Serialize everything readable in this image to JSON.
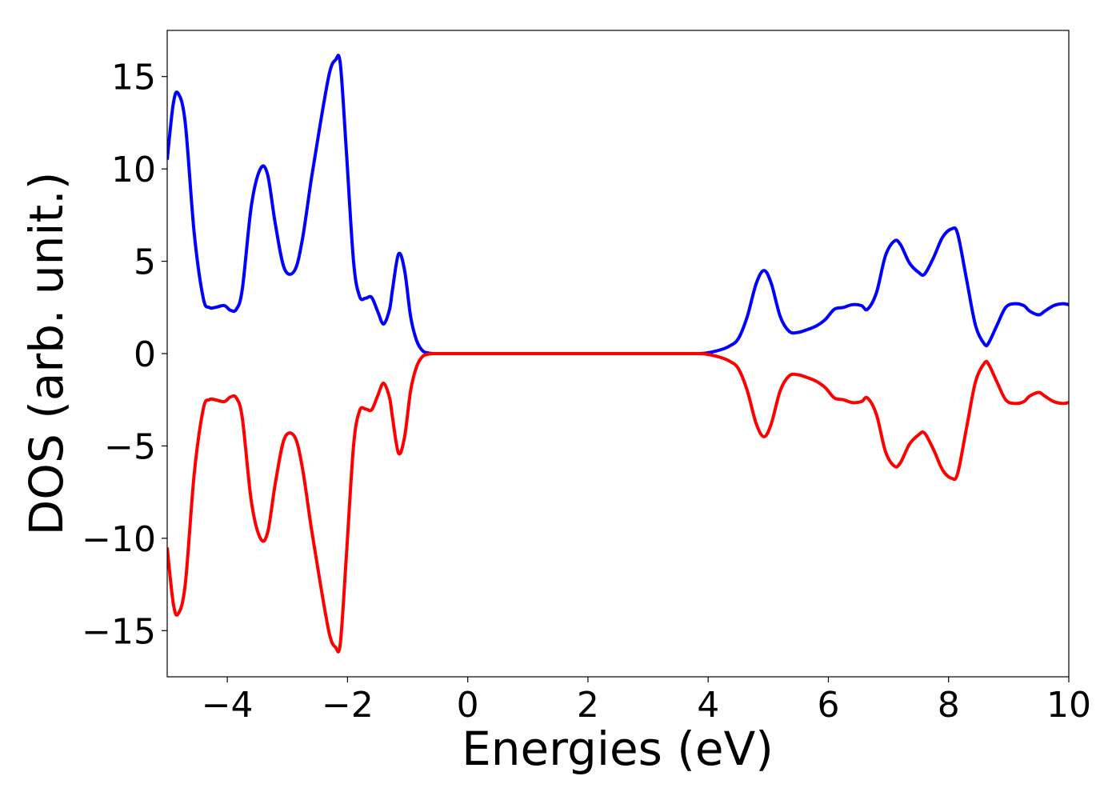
{
  "chart_data": {
    "type": "line",
    "title": "",
    "xlabel": "Energies (eV)",
    "ylabel": "DOS (arb. unit.)",
    "xlim": [
      -5,
      10
    ],
    "ylim": [
      -17.5,
      17.5
    ],
    "grid": false,
    "legend": "none",
    "xticks": [
      -4,
      -2,
      0,
      2,
      4,
      6,
      8,
      10
    ],
    "xtick_labels": [
      "−4",
      "−2",
      "0",
      "2",
      "4",
      "6",
      "8",
      "10"
    ],
    "yticks": [
      -15,
      -10,
      -5,
      0,
      5,
      10,
      15
    ],
    "ytick_labels": [
      "−15",
      "−10",
      "−5",
      "0",
      "5",
      "10",
      "15"
    ],
    "series": [
      {
        "color": "#0000ff",
        "x": [
          -5.0,
          -4.9,
          -4.82,
          -4.7,
          -4.55,
          -4.4,
          -4.3,
          -4.2,
          -4.05,
          -3.95,
          -3.85,
          -3.75,
          -3.6,
          -3.45,
          -3.33,
          -3.2,
          -3.05,
          -2.88,
          -2.75,
          -2.6,
          -2.45,
          -2.3,
          -2.2,
          -2.12,
          -2.02,
          -1.9,
          -1.8,
          -1.7,
          -1.6,
          -1.5,
          -1.4,
          -1.3,
          -1.25,
          -1.15,
          -1.05,
          -0.95,
          -0.85,
          -0.75,
          -0.65,
          -0.55,
          -0.45,
          -0.3,
          0.0,
          1.0,
          2.0,
          3.0,
          3.8,
          4.0,
          4.2,
          4.35,
          4.5,
          4.65,
          4.8,
          4.93,
          5.05,
          5.2,
          5.35,
          5.5,
          5.65,
          5.8,
          5.95,
          6.1,
          6.25,
          6.4,
          6.55,
          6.65,
          6.8,
          6.95,
          7.1,
          7.2,
          7.35,
          7.5,
          7.6,
          7.75,
          7.9,
          8.05,
          8.15,
          8.3,
          8.45,
          8.6,
          8.67,
          8.8,
          8.95,
          9.1,
          9.25,
          9.35,
          9.5,
          9.6,
          9.75,
          9.9,
          10.0
        ],
        "y": [
          10.5,
          13.5,
          14.1,
          12.5,
          6.5,
          3.0,
          2.5,
          2.5,
          2.6,
          2.35,
          2.4,
          3.5,
          8.0,
          10.0,
          9.7,
          7.0,
          4.6,
          4.5,
          6.2,
          9.5,
          12.5,
          15.2,
          15.9,
          15.7,
          11.0,
          5.0,
          3.1,
          3.0,
          3.05,
          2.3,
          1.6,
          2.4,
          3.5,
          5.4,
          4.5,
          2.0,
          0.7,
          0.15,
          0.03,
          0.0,
          0.0,
          0.0,
          0.0,
          0.0,
          0.0,
          0.0,
          0.0,
          0.05,
          0.2,
          0.4,
          0.8,
          2.0,
          3.8,
          4.5,
          3.8,
          2.0,
          1.2,
          1.15,
          1.3,
          1.5,
          1.85,
          2.4,
          2.5,
          2.65,
          2.6,
          2.4,
          3.3,
          5.3,
          6.1,
          5.9,
          4.9,
          4.4,
          4.3,
          5.2,
          6.3,
          6.75,
          6.5,
          4.0,
          1.5,
          0.5,
          0.6,
          1.5,
          2.5,
          2.7,
          2.6,
          2.3,
          2.1,
          2.3,
          2.6,
          2.7,
          2.65
        ]
      },
      {
        "color": "#ff0000",
        "x": [
          -5.0,
          -4.9,
          -4.82,
          -4.7,
          -4.55,
          -4.4,
          -4.3,
          -4.2,
          -4.05,
          -3.95,
          -3.85,
          -3.75,
          -3.6,
          -3.45,
          -3.33,
          -3.2,
          -3.05,
          -2.88,
          -2.75,
          -2.6,
          -2.45,
          -2.3,
          -2.2,
          -2.12,
          -2.02,
          -1.9,
          -1.8,
          -1.7,
          -1.6,
          -1.5,
          -1.4,
          -1.3,
          -1.25,
          -1.15,
          -1.05,
          -0.95,
          -0.85,
          -0.75,
          -0.65,
          -0.55,
          -0.45,
          -0.3,
          0.0,
          1.0,
          2.0,
          3.0,
          3.8,
          4.0,
          4.2,
          4.35,
          4.5,
          4.65,
          4.8,
          4.93,
          5.05,
          5.2,
          5.35,
          5.5,
          5.65,
          5.8,
          5.95,
          6.1,
          6.25,
          6.4,
          6.55,
          6.65,
          6.8,
          6.95,
          7.1,
          7.2,
          7.35,
          7.5,
          7.6,
          7.75,
          7.9,
          8.05,
          8.15,
          8.3,
          8.45,
          8.6,
          8.67,
          8.8,
          8.95,
          9.1,
          9.25,
          9.35,
          9.5,
          9.6,
          9.75,
          9.9,
          10.0
        ],
        "y": [
          -10.5,
          -13.5,
          -14.1,
          -12.5,
          -6.5,
          -3.0,
          -2.5,
          -2.5,
          -2.6,
          -2.35,
          -2.4,
          -3.5,
          -8.0,
          -10.0,
          -9.7,
          -7.0,
          -4.6,
          -4.5,
          -6.2,
          -9.5,
          -12.5,
          -15.2,
          -15.9,
          -15.7,
          -11.0,
          -5.0,
          -3.1,
          -3.0,
          -3.05,
          -2.3,
          -1.6,
          -2.4,
          -3.5,
          -5.4,
          -4.5,
          -2.0,
          -0.7,
          -0.15,
          -0.03,
          0.0,
          0.0,
          0.0,
          0.0,
          0.0,
          0.0,
          0.0,
          0.0,
          -0.05,
          -0.2,
          -0.4,
          -0.8,
          -2.0,
          -3.8,
          -4.5,
          -3.8,
          -2.0,
          -1.2,
          -1.15,
          -1.3,
          -1.5,
          -1.85,
          -2.4,
          -2.5,
          -2.65,
          -2.6,
          -2.4,
          -3.3,
          -5.3,
          -6.1,
          -5.9,
          -4.9,
          -4.4,
          -4.3,
          -5.2,
          -6.3,
          -6.75,
          -6.5,
          -4.0,
          -1.5,
          -0.5,
          -0.6,
          -1.5,
          -2.5,
          -2.7,
          -2.6,
          -2.3,
          -2.1,
          -2.3,
          -2.6,
          -2.7,
          -2.65
        ]
      }
    ]
  }
}
